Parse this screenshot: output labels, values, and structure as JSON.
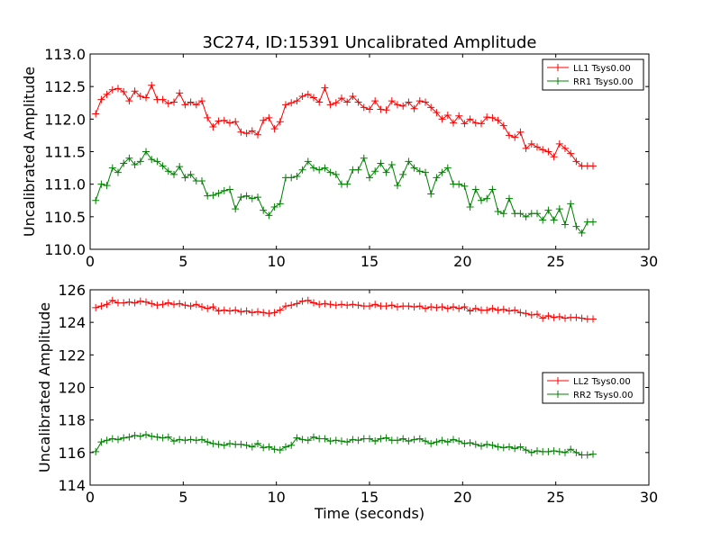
{
  "figure": {
    "title": "3C274, ID:15391 Uncalibrated Amplitude"
  },
  "chart_data": [
    {
      "type": "line",
      "ylabel": "Uncalibrated Amplitude",
      "xlabel": "",
      "xlim": [
        0,
        30
      ],
      "ylim": [
        110.0,
        113.0
      ],
      "xticks": [
        "0",
        "5",
        "10",
        "15",
        "20",
        "25",
        "30"
      ],
      "yticks": [
        "110.0",
        "110.5",
        "111.0",
        "111.5",
        "112.0",
        "112.5",
        "113.0"
      ],
      "legend_position": "top-right",
      "x": [
        0.3,
        0.6,
        0.9,
        1.2,
        1.5,
        1.8,
        2.1,
        2.4,
        2.7,
        3.0,
        3.3,
        3.6,
        3.9,
        4.2,
        4.5,
        4.8,
        5.1,
        5.4,
        5.7,
        6.0,
        6.3,
        6.6,
        6.9,
        7.2,
        7.5,
        7.8,
        8.1,
        8.4,
        8.7,
        9.0,
        9.3,
        9.6,
        9.9,
        10.2,
        10.5,
        10.8,
        11.1,
        11.4,
        11.7,
        12.0,
        12.3,
        12.6,
        12.9,
        13.2,
        13.5,
        13.8,
        14.1,
        14.4,
        14.7,
        15.0,
        15.3,
        15.6,
        15.9,
        16.2,
        16.5,
        16.8,
        17.1,
        17.4,
        17.7,
        18.0,
        18.3,
        18.6,
        18.9,
        19.2,
        19.5,
        19.8,
        20.1,
        20.4,
        20.7,
        21.0,
        21.3,
        21.6,
        21.9,
        22.2,
        22.5,
        22.8,
        23.1,
        23.4,
        23.7,
        24.0,
        24.3,
        24.6,
        24.9,
        25.2,
        25.5,
        25.8,
        26.1,
        26.4,
        26.7,
        27.0
      ],
      "series": [
        {
          "name": "LL1 Tsys0.00",
          "color": "#ff0000",
          "values": [
            112.08,
            112.3,
            112.38,
            112.45,
            112.47,
            112.42,
            112.28,
            112.43,
            112.35,
            112.33,
            112.52,
            112.3,
            112.3,
            112.24,
            112.26,
            112.4,
            112.22,
            112.26,
            112.22,
            112.28,
            112.02,
            111.88,
            111.97,
            111.98,
            111.94,
            111.96,
            111.8,
            111.78,
            111.82,
            111.76,
            111.98,
            112.02,
            111.85,
            111.96,
            112.22,
            112.25,
            112.28,
            112.35,
            112.38,
            112.33,
            112.26,
            112.48,
            112.22,
            112.25,
            112.32,
            112.26,
            112.35,
            112.26,
            112.18,
            112.15,
            112.28,
            112.15,
            112.14,
            112.28,
            112.22,
            112.2,
            112.26,
            112.16,
            112.28,
            112.26,
            112.18,
            112.1,
            112.0,
            112.06,
            111.94,
            112.05,
            111.93,
            112.0,
            111.94,
            111.93,
            112.03,
            112.02,
            111.98,
            111.9,
            111.75,
            111.72,
            111.8,
            111.55,
            111.62,
            111.57,
            111.53,
            111.5,
            111.42,
            111.62,
            111.55,
            111.47,
            111.35,
            111.28,
            111.28,
            111.28
          ]
        },
        {
          "name": "RR1 Tsys0.00",
          "color": "#008000",
          "values": [
            110.75,
            111.0,
            110.98,
            111.25,
            111.18,
            111.32,
            111.4,
            111.3,
            111.35,
            111.5,
            111.38,
            111.35,
            111.28,
            111.2,
            111.15,
            111.27,
            111.1,
            111.15,
            111.05,
            111.05,
            110.82,
            110.83,
            110.86,
            110.9,
            110.92,
            110.62,
            110.8,
            110.82,
            110.78,
            110.8,
            110.6,
            110.52,
            110.65,
            110.7,
            111.1,
            111.1,
            111.12,
            111.22,
            111.35,
            111.25,
            111.22,
            111.25,
            111.18,
            111.15,
            111.0,
            111.0,
            111.22,
            111.22,
            111.4,
            111.1,
            111.2,
            111.32,
            111.18,
            111.3,
            110.98,
            111.15,
            111.35,
            111.25,
            111.2,
            111.18,
            110.85,
            111.1,
            111.18,
            111.25,
            111.0,
            111.0,
            110.97,
            110.65,
            110.92,
            110.75,
            110.78,
            110.92,
            110.58,
            110.55,
            110.78,
            110.55,
            110.55,
            110.5,
            110.55,
            110.55,
            110.45,
            110.6,
            110.45,
            110.62,
            110.38,
            110.7,
            110.35,
            110.25,
            110.42,
            110.42
          ]
        }
      ]
    },
    {
      "type": "line",
      "ylabel": "Uncalibrated Amplitude",
      "xlabel": "Time (seconds)",
      "xlim": [
        0,
        30
      ],
      "ylim": [
        114,
        126
      ],
      "xticks": [
        "0",
        "5",
        "10",
        "15",
        "20",
        "25",
        "30"
      ],
      "yticks": [
        "114",
        "116",
        "118",
        "120",
        "122",
        "124",
        "126"
      ],
      "legend_position": "center-right",
      "x": [
        0.3,
        0.6,
        0.9,
        1.2,
        1.5,
        1.8,
        2.1,
        2.4,
        2.7,
        3.0,
        3.3,
        3.6,
        3.9,
        4.2,
        4.5,
        4.8,
        5.1,
        5.4,
        5.7,
        6.0,
        6.3,
        6.6,
        6.9,
        7.2,
        7.5,
        7.8,
        8.1,
        8.4,
        8.7,
        9.0,
        9.3,
        9.6,
        9.9,
        10.2,
        10.5,
        10.8,
        11.1,
        11.4,
        11.7,
        12.0,
        12.3,
        12.6,
        12.9,
        13.2,
        13.5,
        13.8,
        14.1,
        14.4,
        14.7,
        15.0,
        15.3,
        15.6,
        15.9,
        16.2,
        16.5,
        16.8,
        17.1,
        17.4,
        17.7,
        18.0,
        18.3,
        18.6,
        18.9,
        19.2,
        19.5,
        19.8,
        20.1,
        20.4,
        20.7,
        21.0,
        21.3,
        21.6,
        21.9,
        22.2,
        22.5,
        22.8,
        23.1,
        23.4,
        23.7,
        24.0,
        24.3,
        24.6,
        24.9,
        25.2,
        25.5,
        25.8,
        26.1,
        26.4,
        26.7,
        27.0
      ],
      "series": [
        {
          "name": "LL2 Tsys0.00",
          "color": "#ff0000",
          "values": [
            124.9,
            125.0,
            125.1,
            125.35,
            125.2,
            125.2,
            125.25,
            125.2,
            125.3,
            125.25,
            125.15,
            125.05,
            125.1,
            125.2,
            125.1,
            125.15,
            125.05,
            125.0,
            125.1,
            124.95,
            124.85,
            124.95,
            124.7,
            124.75,
            124.7,
            124.75,
            124.65,
            124.7,
            124.6,
            124.65,
            124.6,
            124.55,
            124.6,
            124.75,
            125.0,
            125.05,
            125.15,
            125.3,
            125.35,
            125.2,
            125.1,
            125.15,
            125.1,
            125.05,
            125.1,
            125.05,
            125.1,
            125.05,
            125.0,
            125.0,
            125.1,
            125.0,
            125.0,
            125.05,
            124.95,
            125.0,
            125.0,
            124.95,
            125.0,
            124.85,
            124.95,
            124.9,
            124.95,
            124.85,
            124.95,
            124.85,
            124.95,
            124.7,
            124.85,
            124.75,
            124.75,
            124.85,
            124.75,
            124.8,
            124.7,
            124.75,
            124.6,
            124.55,
            124.45,
            124.5,
            124.25,
            124.4,
            124.3,
            124.35,
            124.25,
            124.3,
            124.3,
            124.25,
            124.2,
            124.2
          ]
        },
        {
          "name": "RR2 Tsys0.00",
          "color": "#008000",
          "values": [
            116.05,
            116.65,
            116.75,
            116.85,
            116.8,
            116.9,
            116.95,
            117.05,
            117.0,
            117.1,
            117.0,
            116.95,
            116.9,
            116.95,
            116.7,
            116.8,
            116.75,
            116.8,
            116.75,
            116.8,
            116.65,
            116.55,
            116.5,
            116.45,
            116.55,
            116.5,
            116.5,
            116.45,
            116.35,
            116.55,
            116.3,
            116.35,
            116.2,
            116.15,
            116.35,
            116.45,
            116.9,
            116.8,
            116.75,
            116.95,
            116.85,
            116.85,
            116.7,
            116.75,
            116.7,
            116.65,
            116.8,
            116.75,
            116.85,
            116.85,
            116.7,
            116.85,
            116.9,
            116.75,
            116.75,
            116.85,
            116.7,
            116.8,
            116.85,
            116.7,
            116.55,
            116.65,
            116.75,
            116.65,
            116.8,
            116.7,
            116.55,
            116.6,
            116.5,
            116.4,
            116.5,
            116.45,
            116.35,
            116.3,
            116.35,
            116.25,
            116.35,
            116.15,
            116.0,
            116.1,
            116.05,
            116.05,
            116.1,
            116.05,
            116.0,
            116.2,
            116.0,
            115.85,
            115.85,
            115.9
          ]
        }
      ]
    }
  ]
}
